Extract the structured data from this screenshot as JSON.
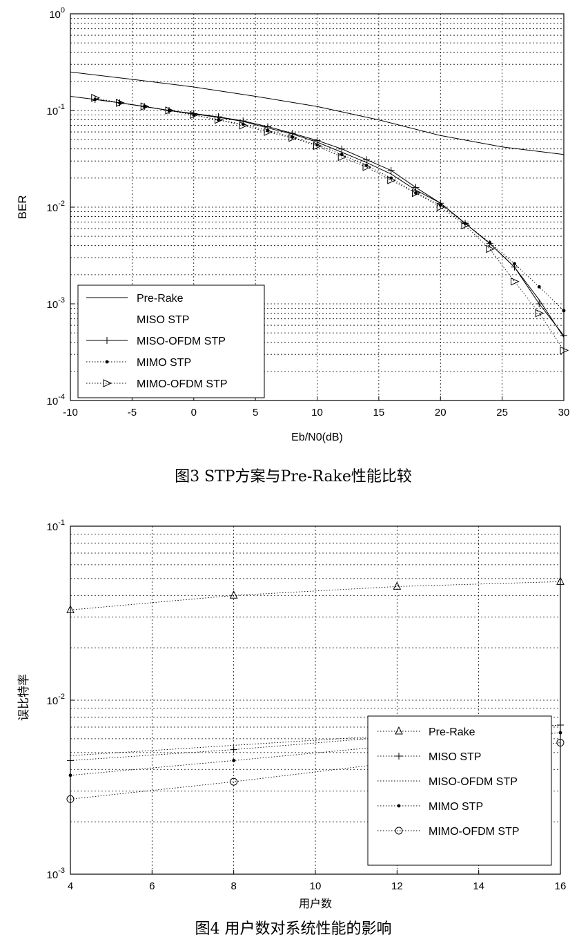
{
  "chart_data": [
    {
      "type": "line",
      "caption": "图3 STP方案与Pre-Rake性能比较",
      "xlabel": "Eb/N0(dB)",
      "ylabel": "BER",
      "xlim": [
        -10,
        30
      ],
      "ylim": [
        0.0001,
        1
      ],
      "yscale": "log",
      "grid": true,
      "legend_location": "bottom-left",
      "xticks": [
        -10,
        -5,
        0,
        5,
        10,
        15,
        20,
        25,
        30
      ],
      "yticks": [
        {
          "value": 1,
          "base": "10",
          "exp": "0"
        },
        {
          "value": 0.1,
          "base": "10",
          "exp": "-1"
        },
        {
          "value": 0.01,
          "base": "10",
          "exp": "-2"
        },
        {
          "value": 0.001,
          "base": "10",
          "exp": "-3"
        },
        {
          "value": 0.0001,
          "base": "10",
          "exp": "-4"
        }
      ],
      "series": [
        {
          "name": "Pre-Rake",
          "marker": "none",
          "style": "solid",
          "x": [
            -10,
            -5,
            0,
            5,
            10,
            15,
            20,
            25,
            30
          ],
          "y": [
            0.25,
            0.21,
            0.175,
            0.14,
            0.11,
            0.08,
            0.055,
            0.042,
            0.035
          ]
        },
        {
          "name": "MISO STP",
          "marker": "none",
          "style": "solid",
          "x": [
            -10,
            -8,
            -6,
            -4,
            -2,
            0,
            2,
            4,
            6,
            8,
            10,
            12,
            14,
            16,
            18,
            20,
            22,
            24,
            26,
            28,
            30
          ],
          "y": [
            0.14,
            0.13,
            0.12,
            0.11,
            0.1,
            0.092,
            0.085,
            0.077,
            0.066,
            0.057,
            0.047,
            0.037,
            0.029,
            0.022,
            0.015,
            0.011,
            0.0068,
            0.0042,
            0.0024,
            0.0011,
            0.00045
          ]
        },
        {
          "name": "MISO-OFDM STP",
          "marker": "plus",
          "style": "solid",
          "x": [
            -8,
            -6,
            -4,
            -2,
            0,
            2,
            4,
            6,
            8,
            10,
            12,
            14,
            16,
            18,
            20,
            22,
            24,
            26,
            28,
            30
          ],
          "y": [
            0.13,
            0.12,
            0.11,
            0.1,
            0.093,
            0.086,
            0.078,
            0.068,
            0.058,
            0.049,
            0.04,
            0.031,
            0.024,
            0.016,
            0.011,
            0.0068,
            0.0042,
            0.0024,
            0.001,
            0.00047
          ]
        },
        {
          "name": "MIMO STP",
          "marker": "dot",
          "style": "dotted",
          "x": [
            -8,
            -6,
            -4,
            -2,
            0,
            2,
            4,
            6,
            8,
            10,
            12,
            14,
            16,
            18,
            20,
            22,
            24,
            26,
            28,
            30
          ],
          "y": [
            0.13,
            0.12,
            0.11,
            0.1,
            0.09,
            0.08,
            0.072,
            0.062,
            0.053,
            0.044,
            0.035,
            0.027,
            0.02,
            0.014,
            0.0105,
            0.0068,
            0.0043,
            0.0026,
            0.0015,
            0.00085
          ]
        },
        {
          "name": "MIMO-OFDM STP",
          "marker": "triangle-right",
          "style": "dotted",
          "x": [
            -8,
            -6,
            -4,
            -2,
            0,
            2,
            4,
            6,
            8,
            10,
            12,
            14,
            16,
            18,
            20,
            22,
            24,
            26,
            28,
            30
          ],
          "y": [
            0.135,
            0.12,
            0.11,
            0.1,
            0.09,
            0.08,
            0.07,
            0.06,
            0.052,
            0.043,
            0.033,
            0.026,
            0.019,
            0.014,
            0.01,
            0.0065,
            0.0037,
            0.0017,
            0.0008,
            0.00033
          ]
        }
      ]
    },
    {
      "type": "line",
      "caption": "图4 用户数对系统性能的影响",
      "xlabel": "用户数",
      "ylabel": "误比特率",
      "xlim": [
        4,
        16
      ],
      "ylim": [
        0.001,
        0.1
      ],
      "yscale": "log",
      "grid": true,
      "legend_location": "bottom-right",
      "xticks": [
        4,
        6,
        8,
        10,
        12,
        14,
        16
      ],
      "yticks": [
        {
          "value": 0.1,
          "base": "10",
          "exp": "-1"
        },
        {
          "value": 0.01,
          "base": "10",
          "exp": "-2"
        },
        {
          "value": 0.001,
          "base": "10",
          "exp": "-3"
        }
      ],
      "series": [
        {
          "name": "Pre-Rake",
          "marker": "triangle-up",
          "style": "dotted",
          "x": [
            4,
            8,
            12,
            16
          ],
          "y": [
            0.033,
            0.04,
            0.045,
            0.048
          ]
        },
        {
          "name": "MISO STP",
          "marker": "plus",
          "style": "dotted",
          "x": [
            4,
            8,
            12,
            16
          ],
          "y": [
            0.0045,
            0.0052,
            0.0062,
            0.0072
          ]
        },
        {
          "name": "MISO-OFDM STP",
          "marker": "none",
          "style": "dotted",
          "x": [
            4,
            8,
            12,
            16
          ],
          "y": [
            0.0048,
            0.0055,
            0.0063,
            0.0072
          ]
        },
        {
          "name": "MIMO STP",
          "marker": "dot",
          "style": "dotted",
          "x": [
            4,
            8,
            12,
            16
          ],
          "y": [
            0.0037,
            0.0045,
            0.0055,
            0.0065
          ]
        },
        {
          "name": "MIMO-OFDM STP",
          "marker": "circle",
          "style": "dotted",
          "x": [
            4,
            8,
            12,
            16
          ],
          "y": [
            0.0027,
            0.0034,
            0.0044,
            0.0057
          ]
        }
      ]
    }
  ]
}
